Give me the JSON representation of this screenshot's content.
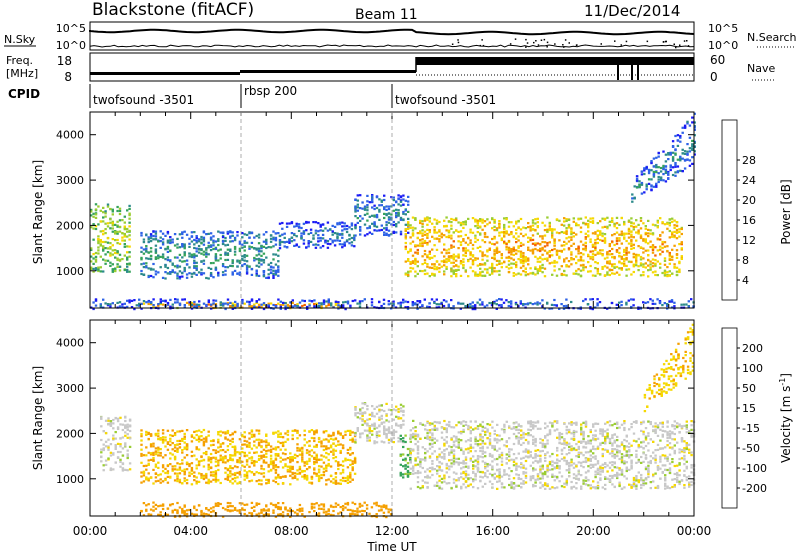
{
  "header": {
    "station": "Blackstone (fitACF)",
    "beam": "Beam 11",
    "date": "11/Dec/2014"
  },
  "noise_panel": {
    "left_label": "N.Sky",
    "right_label": "N.Search",
    "left_ticks": [
      "10^5",
      "10^0"
    ],
    "right_ticks": [
      "10^5",
      "10^0"
    ]
  },
  "freq_panel": {
    "left_label_1": "Freq.",
    "left_label_2": "[MHz]",
    "right_label": "Nave",
    "left_ticks": [
      "18",
      "8"
    ],
    "right_ticks": [
      "60",
      "0"
    ]
  },
  "cpid": {
    "label": "CPID",
    "segments": [
      {
        "name": "twofsound -3501",
        "start_h": 0
      },
      {
        "name": "rbsp 200",
        "start_h": 6
      },
      {
        "name": "twofsound -3501",
        "start_h": 12
      }
    ]
  },
  "time_axis": {
    "label": "Time UT",
    "ticks": [
      "00:00",
      "04:00",
      "08:00",
      "12:00",
      "16:00",
      "20:00",
      "00:00"
    ]
  },
  "chart_data": [
    {
      "type": "heatmap",
      "id": "power",
      "xlabel": "",
      "ylabel": "Slant Range [km]",
      "xlim": [
        0,
        24
      ],
      "ylim": [
        180,
        4500
      ],
      "yticks": [
        1000,
        2000,
        3000,
        4000
      ],
      "colorbar": {
        "label": "Power [dB]",
        "ticks": [
          4,
          8,
          12,
          16,
          20,
          24,
          28
        ],
        "colors": [
          "#1a1af5",
          "#2d62e6",
          "#2c8a8a",
          "#35a35a",
          "#9acd32",
          "#f5d800",
          "#f5a000",
          "#f56400",
          "#ee2200"
        ]
      },
      "features": [
        {
          "start_h": 0.0,
          "end_h": 1.6,
          "range_lo": 1000,
          "range_hi": 2500,
          "level": 18
        },
        {
          "start_h": 2.0,
          "end_h": 7.5,
          "range_lo": 850,
          "range_hi": 1900,
          "level": 10
        },
        {
          "start_h": 7.5,
          "end_h": 10.5,
          "range_lo": 1500,
          "range_hi": 2100,
          "level": 7
        },
        {
          "start_h": 10.5,
          "end_h": 12.6,
          "range_lo": 1800,
          "range_hi": 2700,
          "level": 8
        },
        {
          "start_h": 12.5,
          "end_h": 23.5,
          "range_lo": 900,
          "range_hi": 2200,
          "level": 24
        },
        {
          "start_h": 21.5,
          "end_h": 24.0,
          "range_lo": 2500,
          "range_hi": 4400,
          "level": 8
        },
        {
          "start_h": 2.0,
          "end_h": 10.0,
          "range_lo": 200,
          "range_hi": 320,
          "level": 26
        },
        {
          "start_h": 0.0,
          "end_h": 24.0,
          "range_lo": 180,
          "range_hi": 400,
          "level": 6
        }
      ]
    },
    {
      "type": "heatmap",
      "id": "velocity",
      "xlabel": "Time UT",
      "ylabel": "Slant Range [km]",
      "xlim": [
        0,
        24
      ],
      "ylim": [
        180,
        4500
      ],
      "yticks": [
        1000,
        2000,
        3000,
        4000
      ],
      "colorbar": {
        "label": "Velocity [m s",
        "label_sup": "-1",
        "label_end": "]",
        "ticks": [
          -200,
          -100,
          -50,
          -15,
          15,
          50,
          100,
          200
        ],
        "colors": [
          "#ee2200",
          "#f56400",
          "#f5a000",
          "#f5d800",
          "#c8c8c8",
          "#9acd32",
          "#35a35a",
          "#2c8a8a",
          "#1a1af5"
        ]
      },
      "features": [
        {
          "start_h": 0.4,
          "end_h": 1.6,
          "range_lo": 1200,
          "range_hi": 2400,
          "level": 0
        },
        {
          "start_h": 2.0,
          "end_h": 10.5,
          "range_lo": 900,
          "range_hi": 2100,
          "level": -50
        },
        {
          "start_h": 10.5,
          "end_h": 12.5,
          "range_lo": 1800,
          "range_hi": 2700,
          "level": 0
        },
        {
          "start_h": 12.3,
          "end_h": 12.7,
          "range_lo": 1000,
          "range_hi": 2000,
          "level": 60
        },
        {
          "start_h": 12.7,
          "end_h": 24.0,
          "range_lo": 800,
          "range_hi": 2300,
          "level": 0
        },
        {
          "start_h": 22.0,
          "end_h": 24.0,
          "range_lo": 2500,
          "range_hi": 4400,
          "level": -40
        },
        {
          "start_h": 2.0,
          "end_h": 12.0,
          "range_lo": 180,
          "range_hi": 500,
          "level": -80
        }
      ]
    }
  ]
}
